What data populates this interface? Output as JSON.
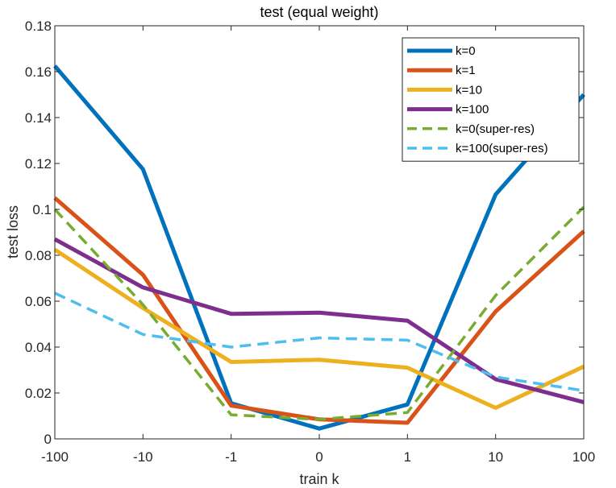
{
  "chart_data": {
    "type": "line",
    "title": "test (equal weight)",
    "xlabel": "train k",
    "ylabel": "test loss",
    "categories": [
      "-100",
      "-10",
      "-1",
      "0",
      "1",
      "10",
      "100"
    ],
    "ylim": [
      0,
      0.18
    ],
    "yticks": [
      0,
      0.02,
      0.04,
      0.06,
      0.08,
      0.1,
      0.12,
      0.14,
      0.16,
      0.18
    ],
    "ytick_labels": [
      "0",
      "0.02",
      "0.04",
      "0.06",
      "0.08",
      "0.1",
      "0.12",
      "0.14",
      "0.16",
      "0.18"
    ],
    "grid": false,
    "legend_position": "top-right",
    "series": [
      {
        "name": "k=0",
        "color": "#0072BD",
        "style": "solid",
        "values": [
          0.1625,
          0.1175,
          0.0155,
          0.0045,
          0.015,
          0.1065,
          0.15
        ]
      },
      {
        "name": "k=1",
        "color": "#D95319",
        "style": "solid",
        "values": [
          0.105,
          0.0715,
          0.0145,
          0.0085,
          0.007,
          0.0555,
          0.0905
        ]
      },
      {
        "name": "k=10",
        "color": "#EDB120",
        "style": "solid",
        "values": [
          0.0825,
          0.057,
          0.0335,
          0.0345,
          0.031,
          0.0135,
          0.0315
        ]
      },
      {
        "name": "k=100",
        "color": "#7E2F8E",
        "style": "solid",
        "values": [
          0.087,
          0.066,
          0.0545,
          0.055,
          0.0515,
          0.026,
          0.016
        ]
      },
      {
        "name": "k=0(super-res)",
        "color": "#77AC30",
        "style": "dashed",
        "values": [
          0.1,
          0.0585,
          0.0105,
          0.0085,
          0.0115,
          0.0625,
          0.101
        ]
      },
      {
        "name": "k=100(super-res)",
        "color": "#4DBEEE",
        "style": "dashed",
        "values": [
          0.0635,
          0.0455,
          0.04,
          0.044,
          0.043,
          0.027,
          0.021
        ]
      }
    ]
  }
}
